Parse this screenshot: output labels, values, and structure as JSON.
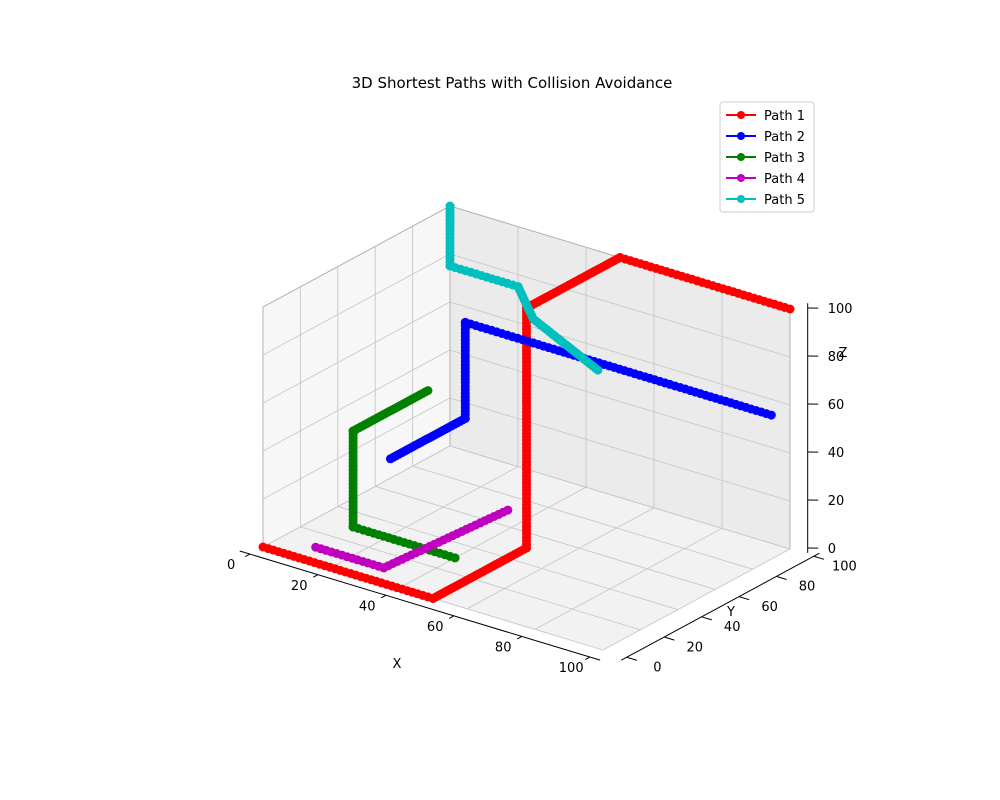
{
  "chart_data": {
    "type": "line",
    "projection": "3d",
    "title": "3D Shortest Paths with Collision Avoidance",
    "xlabel": "X",
    "ylabel": "Y",
    "zlabel": "Z",
    "xlim": [
      0,
      100
    ],
    "ylim": [
      0,
      100
    ],
    "zlim": [
      0,
      100
    ],
    "xticks": [
      "0",
      "20",
      "40",
      "60",
      "80",
      "100"
    ],
    "yticks": [
      "0",
      "20",
      "40",
      "60",
      "80",
      "100"
    ],
    "zticks": [
      "0",
      "20",
      "40",
      "60",
      "80",
      "100"
    ],
    "grid": true,
    "legend_position": "top-right",
    "series": [
      {
        "name": "Path 1",
        "color": "#ff0000",
        "points": [
          [
            0,
            0,
            0
          ],
          [
            50,
            0,
            0
          ],
          [
            50,
            50,
            0
          ],
          [
            50,
            50,
            100
          ],
          [
            50,
            100,
            100
          ],
          [
            100,
            100,
            100
          ]
        ]
      },
      {
        "name": "Path 2",
        "color": "#0000ff",
        "points": [
          [
            10,
            50,
            20
          ],
          [
            10,
            90,
            20
          ],
          [
            10,
            90,
            60
          ],
          [
            30,
            90,
            60
          ],
          [
            100,
            90,
            60
          ]
        ]
      },
      {
        "name": "Path 3",
        "color": "#008000",
        "points": [
          [
            40,
            30,
            0
          ],
          [
            10,
            30,
            0
          ],
          [
            10,
            30,
            40
          ],
          [
            10,
            70,
            40
          ]
        ]
      },
      {
        "name": "Path 4",
        "color": "#bf00bf",
        "points": [
          [
            10,
            10,
            0
          ],
          [
            30,
            10,
            0
          ],
          [
            50,
            40,
            20
          ]
        ]
      },
      {
        "name": "Path 5",
        "color": "#00bfbf",
        "points": [
          [
            0,
            100,
            100
          ],
          [
            0,
            100,
            75
          ],
          [
            20,
            100,
            75
          ],
          [
            30,
            90,
            70
          ],
          [
            60,
            70,
            70
          ]
        ]
      }
    ]
  }
}
